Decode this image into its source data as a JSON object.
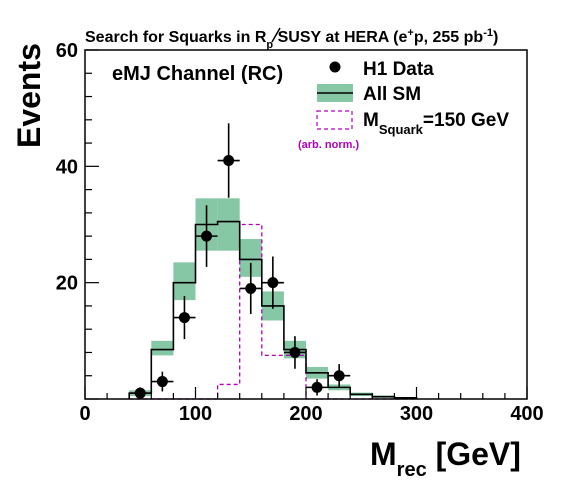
{
  "chart_data": {
    "type": "bar",
    "title": {
      "prefix": "Search for Squarks in ",
      "rp": "R",
      "rp_sub": "p",
      "suffix": " SUSY at HERA (e",
      "sup1": "+",
      "suffix2": "p, 255 pb",
      "sup2": "-1",
      "suffix3": ")"
    },
    "channel_label": "eMJ Channel (RC)",
    "xlabel": {
      "main": "M",
      "sub": "rec",
      "unit": " [GeV]"
    },
    "ylabel": "Events",
    "xlim": [
      0,
      400
    ],
    "ylim": [
      0,
      60
    ],
    "x_ticks": [
      "0",
      "100",
      "200",
      "300",
      "400"
    ],
    "x_tick_values": [
      0,
      100,
      200,
      300,
      400
    ],
    "y_ticks": [
      "20",
      "40",
      "60"
    ],
    "y_tick_values": [
      20,
      40,
      60
    ],
    "bin_edges": [
      40,
      60,
      80,
      100,
      120,
      140,
      160,
      180,
      200,
      220,
      240,
      260,
      280,
      300
    ],
    "series": [
      {
        "name": "H1 Data",
        "kind": "points",
        "x": [
          50,
          70,
          90,
          110,
          130,
          150,
          170,
          190,
          210,
          230
        ],
        "y": [
          1,
          3,
          14,
          28,
          41,
          19,
          20,
          8,
          2,
          4
        ],
        "err": [
          1,
          1.7,
          3.7,
          5.3,
          6.4,
          4.4,
          4.5,
          2.8,
          1.4,
          2
        ]
      },
      {
        "name": "All SM",
        "kind": "step-band",
        "values": [
          1,
          8.5,
          20,
          30,
          30.5,
          24,
          16,
          8.5,
          4.5,
          2,
          0.8,
          0.4,
          0.2
        ],
        "band_low": [
          0.5,
          7.5,
          17,
          25.5,
          25.5,
          21,
          13.5,
          7,
          3.5,
          1.5,
          0.5,
          0.2,
          0.1
        ],
        "band_high": [
          1.5,
          10,
          23.5,
          34.5,
          34.5,
          27.5,
          18.5,
          10,
          5.5,
          2.5,
          1.1,
          0.6,
          0.3
        ]
      },
      {
        "name": "M_Squark=150 GeV",
        "kind": "step-dashed",
        "values": [
          0,
          0,
          0,
          0,
          2.5,
          30,
          7.5,
          7.5,
          0,
          0,
          0,
          0,
          0
        ]
      }
    ],
    "legend": {
      "placement": "top-right",
      "data_label": "H1 Data",
      "sm_label": "All SM",
      "signal_main": "M",
      "signal_sub": "Squark",
      "signal_rest": "=150 GeV",
      "signal_note": "(arb. norm.)"
    },
    "colors": {
      "band": "#86c8a6",
      "signal": "#b000b8",
      "axis": "#000000"
    }
  }
}
